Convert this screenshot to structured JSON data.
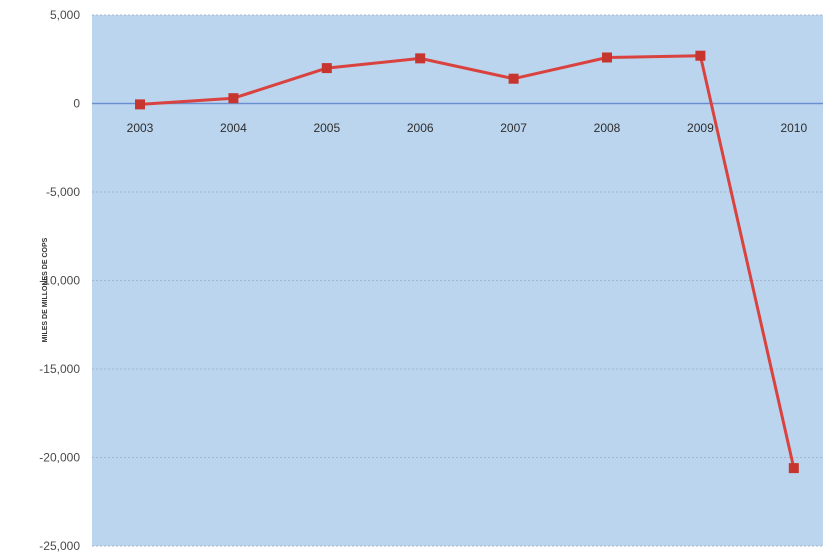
{
  "chart_data": {
    "type": "line",
    "title": "",
    "xlabel": "",
    "ylabel": "MILES DE MILLONES DE COPS",
    "categories": [
      "2003",
      "2004",
      "2005",
      "2006",
      "2007",
      "2008",
      "2009",
      "2010"
    ],
    "series": [
      {
        "values": [
          -50,
          300,
          2000,
          2550,
          1400,
          2600,
          2700,
          -20600
        ]
      }
    ],
    "ylim": [
      -25000,
      5000
    ],
    "yticks": [
      5000,
      0,
      -5000,
      -10000,
      -15000,
      -20000,
      -25000
    ],
    "ytick_labels": [
      "5,000",
      "0",
      "-5,000",
      "-10,000",
      "-15,000",
      "-20,000",
      "-25,000"
    ],
    "grid": true,
    "legend": "none",
    "colors": {
      "plot_background": "#bcd5ee",
      "line": "#d9423f",
      "marker": "#c7352f",
      "zero_line": "#6a8fd0",
      "grid": "#a4b6cb"
    }
  }
}
